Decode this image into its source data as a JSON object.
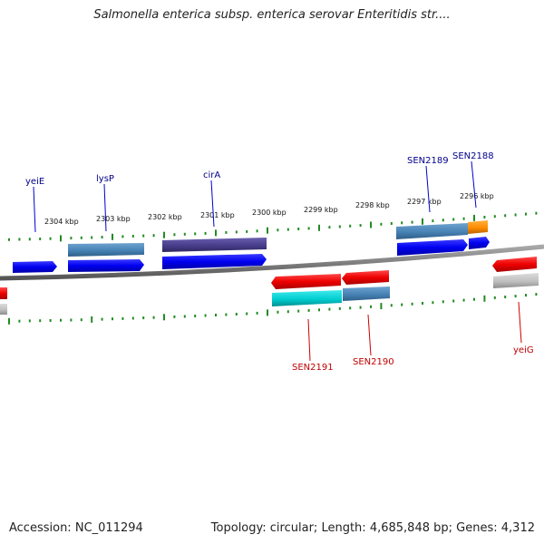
{
  "header": {
    "title": "Salmonella enterica subsp. enterica serovar Enteritidis str...."
  },
  "footer": {
    "accession_label": "Accession:",
    "accession": "NC_011294",
    "topology_label": "Topology:",
    "topology": "circular",
    "length_label": "Length:",
    "length": "4,685,848 bp",
    "genes_label": "Genes:",
    "genes": "4,312"
  },
  "scale": {
    "ticks": [
      "2304 kbp",
      "2303 kbp",
      "2302 kbp",
      "2301 kbp",
      "2300 kbp",
      "2299 kbp",
      "2298 kbp",
      "2297 kbp",
      "2296 kbp"
    ]
  },
  "genes": {
    "forward": [
      {
        "name": "yeiE",
        "color": "#0000ff",
        "product_color": null
      },
      {
        "name": "lysP",
        "color": "#0000ff",
        "product_color": "#4682b4"
      },
      {
        "name": "cirA",
        "color": "#0000ff",
        "product_color": "#483d8b"
      },
      {
        "name": "SEN2189",
        "color": "#0000ff",
        "product_color": "#4682b4"
      },
      {
        "name": "SEN2188",
        "color": "#0000ff",
        "product_color": "#ff8c00"
      }
    ],
    "reverse": [
      {
        "name": "SEN2191",
        "color": "#ff0000",
        "product_color": "#00ced1"
      },
      {
        "name": "SEN2190",
        "color": "#ff0000",
        "product_color": "#4682b4"
      },
      {
        "name": "yeiG",
        "color": "#ff0000",
        "product_color": "#bfbfbf"
      }
    ]
  },
  "colors": {
    "forward_label": "#00008b",
    "reverse_label": "#c00000",
    "backbone": "#808080",
    "tick": "#228b22"
  }
}
